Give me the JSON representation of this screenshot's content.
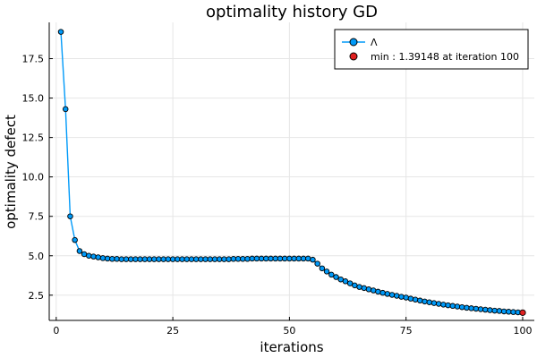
{
  "chart_data": {
    "type": "line",
    "title": "optimality history GD",
    "xlabel": "iterations",
    "ylabel": "optimality defect",
    "xlim": [
      -1.5,
      102.5
    ],
    "ylim": [
      0.9,
      19.8
    ],
    "xticks": [
      0,
      25,
      50,
      75,
      100
    ],
    "yticks": [
      2.5,
      5.0,
      7.5,
      10.0,
      12.5,
      15.0,
      17.5
    ],
    "ytick_labels": [
      "2.5",
      "5.0",
      "7.5",
      "10.0",
      "12.5",
      "15.0",
      "17.5"
    ],
    "grid": true,
    "legend_position": "top-right",
    "series": [
      {
        "name": "Λ",
        "color": "#009af9",
        "marker": "circle",
        "x": [
          1,
          2,
          3,
          4,
          5,
          6,
          7,
          8,
          9,
          10,
          11,
          12,
          13,
          14,
          15,
          16,
          17,
          18,
          19,
          20,
          21,
          22,
          23,
          24,
          25,
          26,
          27,
          28,
          29,
          30,
          31,
          32,
          33,
          34,
          35,
          36,
          37,
          38,
          39,
          40,
          41,
          42,
          43,
          44,
          45,
          46,
          47,
          48,
          49,
          50,
          51,
          52,
          53,
          54,
          55,
          56,
          57,
          58,
          59,
          60,
          61,
          62,
          63,
          64,
          65,
          66,
          67,
          68,
          69,
          70,
          71,
          72,
          73,
          74,
          75,
          76,
          77,
          78,
          79,
          80,
          81,
          82,
          83,
          84,
          85,
          86,
          87,
          88,
          89,
          90,
          91,
          92,
          93,
          94,
          95,
          96,
          97,
          98,
          99,
          100
        ],
        "y": [
          19.2,
          14.3,
          7.5,
          6.0,
          5.3,
          5.1,
          5.0,
          4.95,
          4.9,
          4.85,
          4.82,
          4.8,
          4.8,
          4.78,
          4.78,
          4.78,
          4.78,
          4.78,
          4.78,
          4.78,
          4.78,
          4.78,
          4.78,
          4.78,
          4.78,
          4.78,
          4.78,
          4.78,
          4.78,
          4.78,
          4.78,
          4.78,
          4.78,
          4.78,
          4.78,
          4.78,
          4.78,
          4.8,
          4.8,
          4.8,
          4.8,
          4.82,
          4.82,
          4.82,
          4.82,
          4.82,
          4.82,
          4.82,
          4.82,
          4.82,
          4.82,
          4.82,
          4.82,
          4.82,
          4.75,
          4.5,
          4.2,
          4.0,
          3.8,
          3.65,
          3.5,
          3.38,
          3.25,
          3.12,
          3.02,
          2.95,
          2.87,
          2.8,
          2.72,
          2.65,
          2.58,
          2.52,
          2.46,
          2.4,
          2.35,
          2.28,
          2.22,
          2.16,
          2.1,
          2.05,
          2.0,
          1.95,
          1.9,
          1.86,
          1.82,
          1.78,
          1.74,
          1.7,
          1.67,
          1.64,
          1.61,
          1.58,
          1.55,
          1.52,
          1.5,
          1.47,
          1.45,
          1.43,
          1.41,
          1.39148
        ]
      },
      {
        "name": "min : 1.39148 at iteration 100",
        "color": "#e02020",
        "marker": "circle",
        "x": [
          100
        ],
        "y": [
          1.39148
        ]
      }
    ]
  }
}
